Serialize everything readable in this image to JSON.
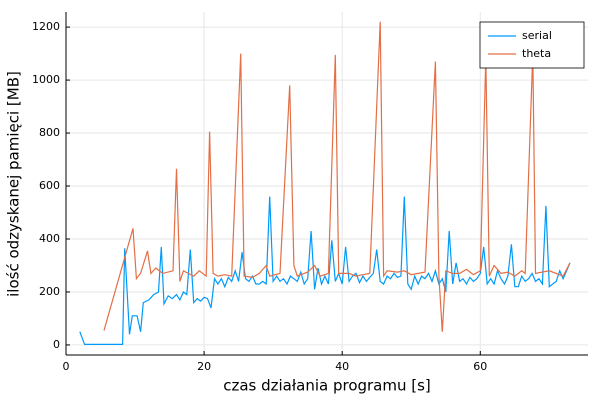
{
  "chart_data": {
    "type": "line",
    "x_label": "czas działania programu [s]",
    "y_label": "ilość odzyskanej pamięci [MB]",
    "xlim": [
      0,
      75.6
    ],
    "ylim": [
      -38,
      1257
    ],
    "xticks": [
      0,
      20,
      40,
      60
    ],
    "yticks": [
      0,
      200,
      400,
      600,
      800,
      1000,
      1200
    ],
    "grid": true,
    "legend": "top-right",
    "series": [
      {
        "name": "serial",
        "color": "#009af9",
        "x": [
          2,
          2.7,
          8.2,
          8.5,
          9.2,
          9.6,
          10.3,
          10.8,
          11.2,
          12,
          12.7,
          13.4,
          13.8,
          14.2,
          14.8,
          15.4,
          16,
          16.5,
          17,
          17.5,
          18,
          18.5,
          19,
          19.5,
          20,
          20.5,
          21,
          21.5,
          22,
          22.5,
          23,
          23.5,
          24,
          24.5,
          25,
          25.5,
          26,
          26.5,
          27,
          27.5,
          28,
          28.5,
          29,
          29.5,
          30,
          30.5,
          31,
          31.5,
          32,
          32.5,
          33,
          33.5,
          34,
          34.5,
          35,
          35.5,
          36,
          36.5,
          37,
          37.5,
          38,
          38.5,
          39,
          39.5,
          40,
          40.5,
          41,
          41.5,
          42,
          42.5,
          43,
          43.5,
          44,
          44.5,
          45,
          45.5,
          46,
          46.5,
          47,
          47.5,
          48,
          48.5,
          49,
          49.5,
          50,
          50.5,
          51,
          51.5,
          52,
          52.5,
          53,
          53.5,
          54,
          54.5,
          55,
          55.5,
          56,
          56.5,
          57,
          57.5,
          58,
          58.5,
          59,
          59.5,
          60,
          60.5,
          61,
          61.5,
          62,
          62.5,
          63,
          63.5,
          64,
          64.5,
          65,
          65.5,
          66,
          66.5,
          67,
          67.5,
          68,
          68.5,
          69,
          69.5,
          70,
          70.5,
          71,
          71.5,
          72,
          72.5,
          73
        ],
        "values": [
          50,
          2,
          2,
          365,
          40,
          110,
          110,
          50,
          160,
          170,
          190,
          200,
          370,
          155,
          185,
          175,
          190,
          170,
          200,
          190,
          360,
          160,
          175,
          165,
          180,
          175,
          140,
          250,
          230,
          250,
          220,
          255,
          240,
          280,
          240,
          350,
          250,
          240,
          260,
          230,
          230,
          240,
          230,
          560,
          240,
          260,
          240,
          250,
          230,
          260,
          250,
          240,
          275,
          230,
          250,
          430,
          210,
          290,
          230,
          260,
          230,
          395,
          240,
          270,
          230,
          370,
          240,
          260,
          270,
          235,
          260,
          240,
          255,
          270,
          360,
          240,
          230,
          260,
          250,
          270,
          255,
          260,
          560,
          230,
          210,
          260,
          230,
          260,
          250,
          270,
          240,
          280,
          230,
          250,
          200,
          430,
          230,
          310,
          240,
          250,
          230,
          255,
          240,
          250,
          270,
          370,
          230,
          250,
          230,
          280,
          250,
          230,
          260,
          380,
          220,
          220,
          260,
          240,
          250,
          270,
          240,
          250,
          230,
          525,
          220,
          230,
          240,
          280,
          250,
          280,
          310
        ]
      },
      {
        "name": "theta",
        "color": "#e26f46",
        "x": [
          5.5,
          9.7,
          10.2,
          10.8,
          11.8,
          12.3,
          13,
          14,
          15.5,
          16,
          16.5,
          17,
          18.5,
          19.3,
          20.3,
          20.8,
          21.3,
          22,
          23,
          24,
          25.3,
          25.8,
          27,
          28,
          29,
          29.5,
          31,
          32.4,
          33,
          33.5,
          35,
          36,
          36.8,
          38,
          39,
          39.5,
          41,
          42,
          43,
          44,
          45.5,
          46,
          46.5,
          48,
          49,
          50,
          51,
          52,
          53.5,
          54,
          54.5,
          55,
          56,
          57,
          58,
          59,
          60,
          60.8,
          61.3,
          62,
          63,
          64,
          65,
          66,
          66.5,
          67.6,
          68,
          70,
          72,
          73
        ],
        "values": [
          55,
          440,
          250,
          270,
          355,
          270,
          290,
          270,
          280,
          665,
          240,
          280,
          260,
          280,
          260,
          805,
          270,
          260,
          265,
          260,
          1100,
          260,
          255,
          270,
          300,
          260,
          270,
          980,
          300,
          260,
          275,
          300,
          260,
          270,
          1095,
          270,
          270,
          260,
          265,
          270,
          1220,
          260,
          280,
          275,
          280,
          265,
          270,
          275,
          1070,
          260,
          50,
          280,
          270,
          270,
          285,
          265,
          280,
          1085,
          260,
          300,
          270,
          275,
          260,
          280,
          270,
          1100,
          270,
          280,
          260,
          310
        ]
      }
    ]
  }
}
